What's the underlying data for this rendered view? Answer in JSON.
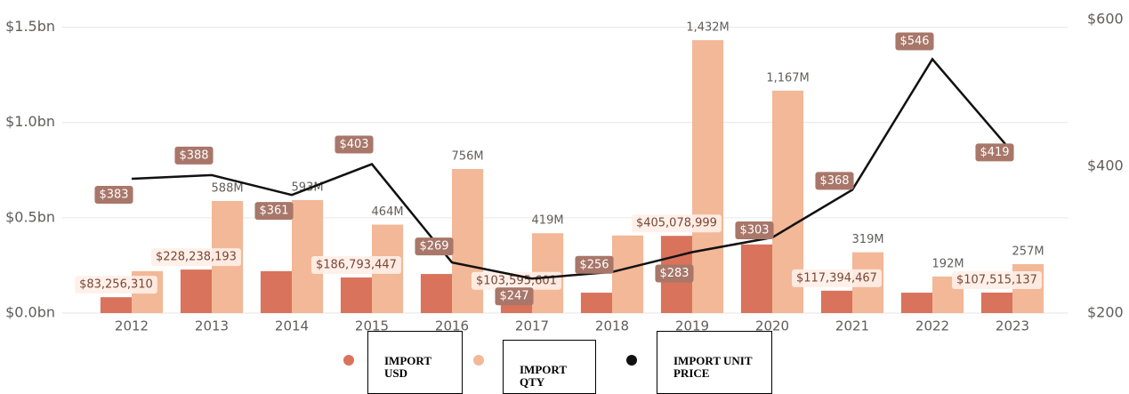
{
  "chart_data": {
    "type": "bar-line",
    "categories": [
      "2012",
      "2013",
      "2014",
      "2015",
      "2016",
      "2017",
      "2018",
      "2019",
      "2020",
      "2021",
      "2022",
      "2023"
    ],
    "series": [
      {
        "name": "IMPORT USD",
        "color": "#d9735c",
        "type": "bar",
        "values": [
          83256310,
          228238193,
          220000000,
          186793447,
          205000000,
          103595601,
          107000000,
          405078999,
          360000000,
          117394467,
          107000000,
          107515137
        ],
        "value_labels": [
          "$83,256,310",
          "$228,238,193",
          null,
          "$186,793,447",
          null,
          "$103,595,601",
          null,
          "$405,078,999",
          null,
          "$117,394,467",
          null,
          "$107,515,137"
        ]
      },
      {
        "name": "IMPORT QTY",
        "color": "#f2b897",
        "type": "bar",
        "values": [
          220000000,
          588000000,
          593000000,
          464000000,
          756000000,
          419000000,
          407000000,
          1432000000,
          1167000000,
          319000000,
          192000000,
          257000000
        ],
        "value_labels": [
          null,
          "588M",
          "593M",
          "464M",
          "756M",
          "419M",
          null,
          "1,432M",
          "1,167M",
          "319M",
          "192M",
          "257M"
        ]
      },
      {
        "name": "IMPORT UNIT PRICE",
        "color": "#111111",
        "type": "line",
        "axis": "y2",
        "values": [
          383,
          388,
          361,
          403,
          269,
          247,
          256,
          283,
          303,
          368,
          546,
          419
        ],
        "value_labels": [
          "$383",
          "$388",
          "$361",
          "$403",
          "$269",
          "$247",
          "$256",
          "$283",
          "$303",
          "$368",
          "$546",
          "$419"
        ]
      }
    ],
    "ylim": [
      0,
      1540000000
    ],
    "yticks": [
      {
        "value": 0,
        "label": "$0.0bn"
      },
      {
        "value": 500000000,
        "label": "$0.5bn"
      },
      {
        "value": 1000000000,
        "label": "$1.0bn"
      },
      {
        "value": 1500000000,
        "label": "$1.5bn"
      }
    ],
    "y2lim": [
      200,
      600
    ],
    "y2ticks": [
      {
        "value": 200,
        "label": "$200"
      },
      {
        "value": 400,
        "label": "$400"
      },
      {
        "value": 600,
        "label": "$600"
      }
    ],
    "grid": true
  }
}
